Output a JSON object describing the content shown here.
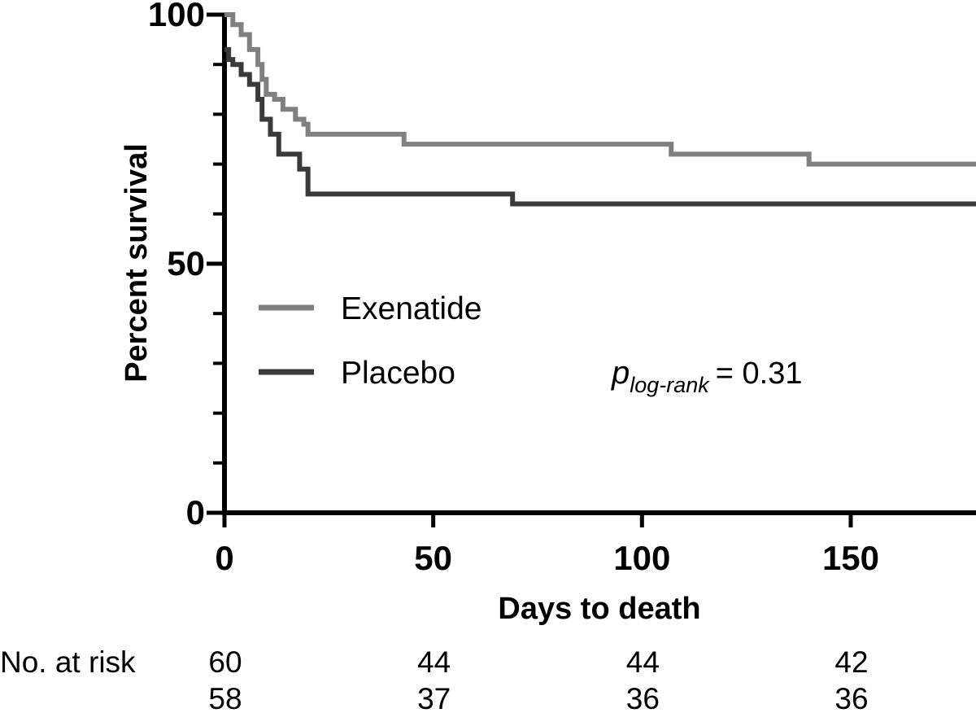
{
  "chart_data": {
    "type": "line",
    "subtype": "kaplan-meier",
    "xlabel": "Days to death",
    "ylabel": "Percent survival",
    "xlim": [
      0,
      180
    ],
    "ylim": [
      0,
      100
    ],
    "x_ticks": [
      0,
      50,
      100,
      150
    ],
    "x_tick_labels": [
      "0",
      "50",
      "100",
      "150"
    ],
    "y_ticks": [
      0,
      50,
      100
    ],
    "y_tick_labels": [
      "0",
      "50",
      "100"
    ],
    "y_minor_ticks": [
      10,
      20,
      30,
      40,
      60,
      70,
      80,
      90
    ],
    "series": [
      {
        "name": "Exenatide",
        "color": "#808080",
        "x": [
          0,
          2,
          4,
          6,
          8,
          9,
          10,
          12,
          14,
          17,
          19,
          20,
          43,
          107,
          140,
          180
        ],
        "y": [
          100,
          98,
          96,
          93,
          90,
          87,
          84,
          83,
          81,
          79,
          78,
          76,
          74,
          72,
          70,
          70
        ]
      },
      {
        "name": "Placebo",
        "color": "#3a3a3a",
        "x": [
          0,
          1,
          2,
          4,
          6,
          8,
          9,
          11,
          13,
          18,
          20,
          69,
          180
        ],
        "y": [
          93,
          91,
          90,
          88,
          86,
          83,
          79,
          76,
          72,
          69,
          64,
          62,
          62
        ]
      }
    ],
    "annotation": {
      "p_symbol": "p",
      "p_subscript": "log-rank",
      "p_value_text": "= 0.31"
    },
    "legend_position": "center-left",
    "at_risk": {
      "label": "No. at risk",
      "days": [
        0,
        50,
        100,
        150
      ],
      "rows": [
        {
          "series": "Exenatide",
          "values": [
            "60",
            "44",
            "44",
            "42"
          ]
        },
        {
          "series": "Placebo",
          "values": [
            "58",
            "37",
            "36",
            "36"
          ]
        }
      ]
    }
  }
}
